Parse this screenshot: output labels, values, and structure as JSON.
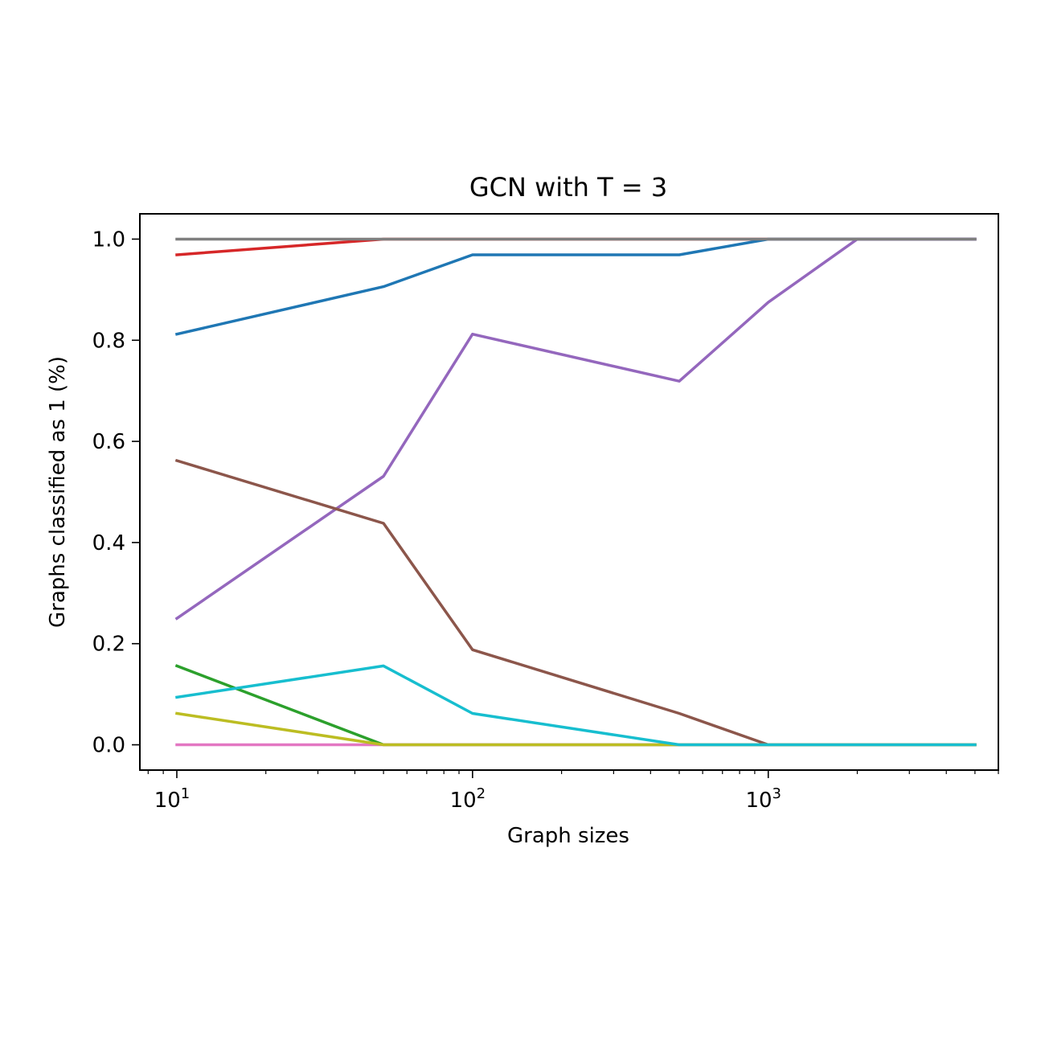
{
  "chart_data": {
    "type": "line",
    "title": "GCN with T = 3",
    "xlabel": "Graph sizes",
    "ylabel": "Graphs classified as 1 (%)",
    "xscale": "log",
    "xlim": [
      7.5,
      6000
    ],
    "ylim": [
      -0.05,
      1.05
    ],
    "grid": false,
    "legend": "none",
    "x": [
      10,
      50,
      100,
      500,
      1000,
      2000,
      5000
    ],
    "xticks": [
      {
        "value": 10,
        "base": "10",
        "exp": "1"
      },
      {
        "value": 100,
        "base": "10",
        "exp": "2"
      },
      {
        "value": 1000,
        "base": "10",
        "exp": "3"
      }
    ],
    "yticks": [
      "0.0",
      "0.2",
      "0.4",
      "0.6",
      "0.8",
      "1.0"
    ],
    "series": [
      {
        "color": "#d62728",
        "values": [
          0.969,
          1.0,
          1.0,
          1.0,
          1.0,
          1.0,
          1.0
        ]
      },
      {
        "color": "#1f77b4",
        "values": [
          0.812,
          0.906,
          0.969,
          0.969,
          1.0,
          1.0,
          1.0
        ]
      },
      {
        "color": "#9467bd",
        "values": [
          0.25,
          0.531,
          0.812,
          0.719,
          0.875,
          1.0,
          1.0
        ]
      },
      {
        "color": "#8c564b",
        "values": [
          0.562,
          0.438,
          0.188,
          0.062,
          0.0,
          0.0,
          0.0
        ]
      },
      {
        "color": "#2ca02c",
        "values": [
          0.156,
          0.0,
          0.0,
          0.0,
          0.0,
          0.0,
          0.0
        ]
      },
      {
        "color": "#e377c2",
        "values": [
          0.0,
          0.0,
          0.0,
          0.0,
          0.0,
          0.0,
          0.0
        ]
      },
      {
        "color": "#bcbd22",
        "values": [
          0.062,
          0.0,
          0.0,
          0.0,
          0.0,
          0.0,
          0.0
        ]
      },
      {
        "color": "#17becf",
        "values": [
          0.094,
          0.156,
          0.062,
          0.0,
          0.0,
          0.0,
          0.0
        ]
      },
      {
        "color": "#7f7f7f",
        "values": [
          1.0,
          1.0,
          1.0,
          1.0,
          1.0,
          1.0,
          1.0
        ]
      }
    ]
  }
}
